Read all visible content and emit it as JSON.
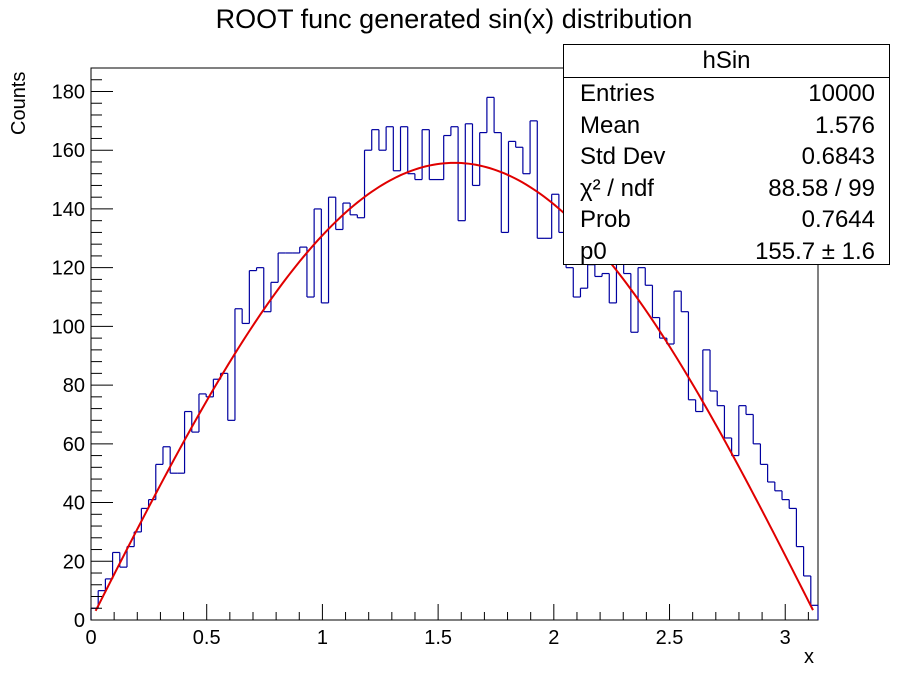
{
  "title": "ROOT func generated sin(x) distribution",
  "colors": {
    "histogram": "#0000a0",
    "fit": "#e00000",
    "axis": "#000000"
  },
  "stats_box": {
    "name": "hSin",
    "rows": [
      {
        "label": "Entries",
        "value": "10000"
      },
      {
        "label": "Mean",
        "value": "1.576"
      },
      {
        "label": "Std Dev",
        "value": "0.6843"
      },
      {
        "label": "χ² / ndf",
        "value": "88.58 / 99"
      },
      {
        "label": "Prob",
        "value": "0.7644"
      },
      {
        "label": "p0",
        "value": "155.7 ± 1.6"
      }
    ]
  },
  "chart_data": {
    "type": "bar",
    "xlabel": "x",
    "ylabel": "Counts",
    "xlim": [
      0,
      3.1416
    ],
    "ylim": [
      0,
      188
    ],
    "x_ticks": [
      0,
      0.5,
      1,
      1.5,
      2,
      2.5,
      3
    ],
    "x_tick_labels": [
      "0",
      "0.5",
      "1",
      "1.5",
      "2",
      "2.5",
      "3"
    ],
    "y_ticks": [
      0,
      20,
      40,
      60,
      80,
      100,
      120,
      140,
      160,
      180
    ],
    "y_tick_labels": [
      "0",
      "20",
      "40",
      "60",
      "80",
      "100",
      "120",
      "140",
      "160",
      "180"
    ],
    "series": [
      {
        "values": [
          4,
          10,
          14,
          23,
          18,
          25,
          30,
          38,
          41,
          53,
          59,
          50,
          50,
          71,
          64,
          77,
          76,
          82,
          84,
          68,
          106,
          101,
          119,
          120,
          105,
          115,
          125,
          125,
          125,
          127,
          110,
          140,
          108,
          144,
          133,
          142,
          138,
          137,
          160,
          167,
          160,
          168,
          153,
          168,
          152,
          150,
          167,
          150,
          150,
          165,
          168,
          136,
          169,
          148,
          166,
          178,
          166,
          132,
          163,
          161,
          152,
          170,
          130,
          130,
          145,
          132,
          120,
          110,
          113,
          121,
          117,
          118,
          108,
          122,
          118,
          98,
          120,
          114,
          103,
          96,
          94,
          112,
          105,
          75,
          71,
          92,
          78,
          73,
          62,
          56,
          73,
          70,
          60,
          53,
          47,
          44,
          41,
          38,
          25,
          15,
          5
        ]
      }
    ],
    "fit": {
      "function": "p0*sin(x)",
      "p0": 155.7
    }
  }
}
